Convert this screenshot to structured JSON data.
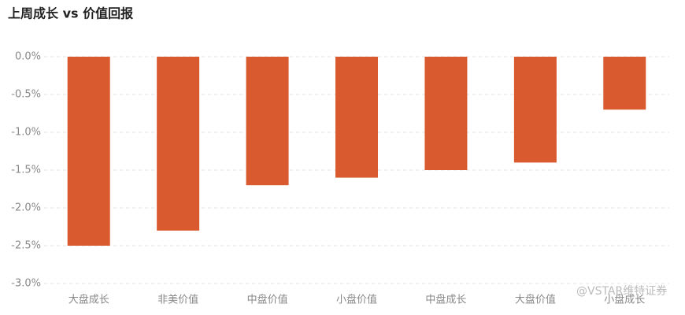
{
  "chart_data": {
    "type": "bar",
    "title": "上周成长 vs 价值回报",
    "categories": [
      "大盘成长",
      "非美价值",
      "中盘价值",
      "小盘价值",
      "中盘成长",
      "大盘价值",
      "小盘成长"
    ],
    "values": [
      -2.5,
      -2.3,
      -1.7,
      -1.6,
      -1.5,
      -1.4,
      -0.7
    ],
    "color": "#d95a2e",
    "ylim": [
      -3.0,
      0.0
    ],
    "yticks": [
      {
        "value": 0,
        "label": "0.0%"
      },
      {
        "value": -0.5,
        "label": "-0.5%"
      },
      {
        "value": -1.0,
        "label": "-1.0%"
      },
      {
        "value": -1.5,
        "label": "-1.5%"
      },
      {
        "value": -2.0,
        "label": "-2.0%"
      },
      {
        "value": -2.5,
        "label": "-2.5%"
      },
      {
        "value": -3.0,
        "label": "-3.0%"
      }
    ],
    "grid": true,
    "watermark": "@VSTAR维特证券"
  }
}
